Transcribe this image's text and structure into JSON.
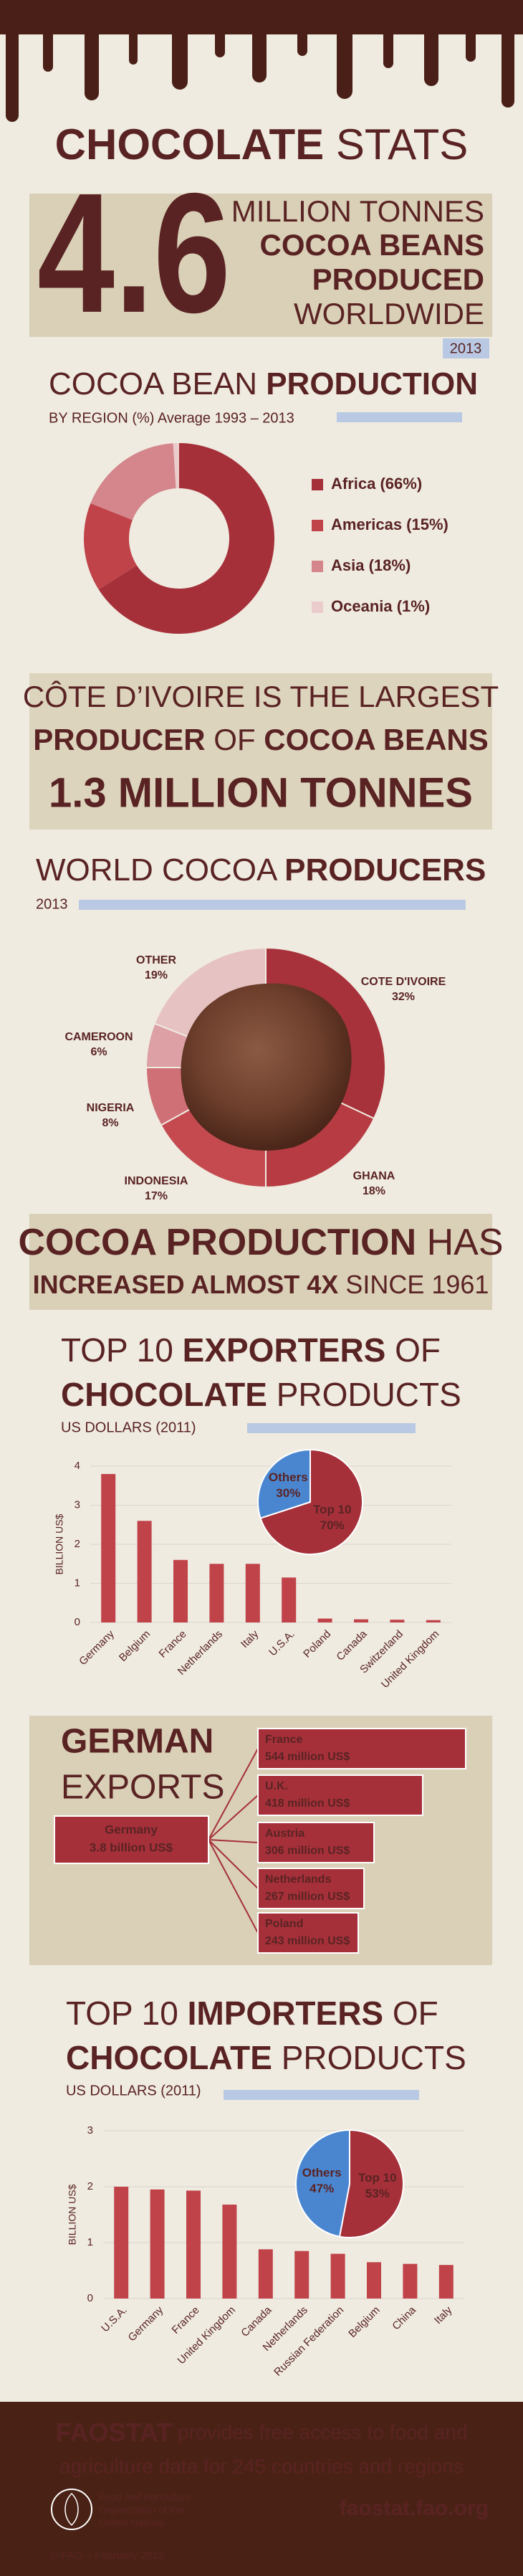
{
  "header": {
    "title_bold": "CHOCOLATE",
    "title_rest": "STATS"
  },
  "hero": {
    "number": "4.6",
    "line1": "MILLION TONNES",
    "line2": "COCOA BEANS",
    "line3": "PRODUCED",
    "line4": "WORLDWIDE",
    "year": "2013"
  },
  "region_production": {
    "type": "donut",
    "title_rest": "COCOA BEAN",
    "title_bold": "PRODUCTION",
    "subtitle": "BY REGION (%) Average 1993 – 2013",
    "categories": [
      "Africa (66%)",
      "Americas (15%)",
      "Asia (18%)",
      "Oceania (1%)"
    ],
    "values": [
      66,
      15,
      18,
      1
    ],
    "colors": [
      "#a5303a",
      "#c0434a",
      "#d4868c",
      "#ebcccc"
    ]
  },
  "cote_divoire": {
    "line1": "CÔTE D’IVOIRE IS THE LARGEST",
    "line2_bold": "PRODUCER",
    "line2_mid": "OF",
    "line2_end": "COCOA BEANS",
    "line3": "1.3 MILLION TONNES"
  },
  "world_producers": {
    "type": "pie",
    "title_rest": "WORLD COCOA",
    "title_bold": "PRODUCERS",
    "subtitle": "2013",
    "categories": [
      "COTE D'IVOIRE",
      "GHANA",
      "INDONESIA",
      "NIGERIA",
      "CAMEROON",
      "OTHER"
    ],
    "values": [
      32,
      18,
      17,
      8,
      6,
      19
    ],
    "value_labels": [
      "32%",
      "18%",
      "17%",
      "8%",
      "6%",
      "19%"
    ],
    "colors": [
      "#a8323b",
      "#b73b42",
      "#c44a50",
      "#cf6f76",
      "#dca0a5",
      "#e6c2c3"
    ]
  },
  "growth": {
    "line1_bold": "COCOA PRODUCTION",
    "line1_rest": "HAS",
    "line2_bold": "INCREASED ALMOST 4X",
    "line2_rest": "SINCE 1961"
  },
  "exporters": {
    "type": "bar",
    "title1_a": "TOP 10",
    "title1_b": "EXPORTERS",
    "title1_c": "OF",
    "title2_a": "CHOCOLATE",
    "title2_b": "PRODUCTS",
    "subtitle": "US DOLLARS (2011)",
    "ylabel": "BILLION US$",
    "categories": [
      "Germany",
      "Belgium",
      "France",
      "Netherlands",
      "Italy",
      "U.S.A.",
      "Poland",
      "Canada",
      "Switzerland",
      "United Kingdom"
    ],
    "values": [
      3.8,
      2.6,
      1.6,
      1.5,
      1.5,
      1.15,
      0.1,
      0.08,
      0.07,
      0.06
    ],
    "color": "#c0434a",
    "ylim": [
      0,
      4
    ],
    "yticks": [
      0,
      1,
      2,
      3,
      4
    ],
    "grid": true,
    "share": {
      "type": "pie",
      "categories": [
        "Top 10",
        "Others"
      ],
      "values": [
        70,
        30
      ],
      "value_labels": [
        "70%",
        "30%"
      ],
      "colors": [
        "#a5303a",
        "#4a86d0"
      ]
    }
  },
  "german_exports": {
    "title_bold": "GERMAN",
    "title_rest": "EXPORTS",
    "source": {
      "name": "Germany",
      "value": "3.8 billion US$"
    },
    "destinations": [
      {
        "name": "France",
        "value": "544 million US$"
      },
      {
        "name": "U.K.",
        "value": "418 million US$"
      },
      {
        "name": "Austria",
        "value": "306 million US$"
      },
      {
        "name": "Netherlands",
        "value": "267 million US$"
      },
      {
        "name": "Poland",
        "value": "243 million US$"
      }
    ]
  },
  "importers": {
    "type": "bar",
    "title1_a": "TOP 10",
    "title1_b": "IMPORTERS",
    "title1_c": "OF",
    "title2_a": "CHOCOLATE",
    "title2_b": "PRODUCTS",
    "subtitle": "US DOLLARS (2011)",
    "ylabel": "BILLION US$",
    "categories": [
      "U.S.A.",
      "Germany",
      "France",
      "United Kingdom",
      "Canada",
      "Netherlands",
      "Russian Federation",
      "Belgium",
      "China",
      "Italy"
    ],
    "values": [
      2.0,
      1.95,
      1.93,
      1.68,
      0.88,
      0.85,
      0.8,
      0.65,
      0.62,
      0.6
    ],
    "color": "#c0434a",
    "ylim": [
      0,
      3
    ],
    "yticks": [
      0,
      1,
      2,
      3
    ],
    "grid": true,
    "share": {
      "type": "pie",
      "categories": [
        "Top 10",
        "Others"
      ],
      "values": [
        53,
        47
      ],
      "value_labels": [
        "53%",
        "47%"
      ],
      "colors": [
        "#a5303a",
        "#4a86d0"
      ]
    }
  },
  "footer": {
    "lead": "FAOSTAT",
    "line1": "provides free access to food and",
    "line2": "agriculture data for 245 countries and regions",
    "org1": "Food and Agriculture",
    "org2": "Organization of the",
    "org3": "United Nations",
    "url": "faostat.fao.org",
    "copyright": "© FAO – February 2015"
  }
}
